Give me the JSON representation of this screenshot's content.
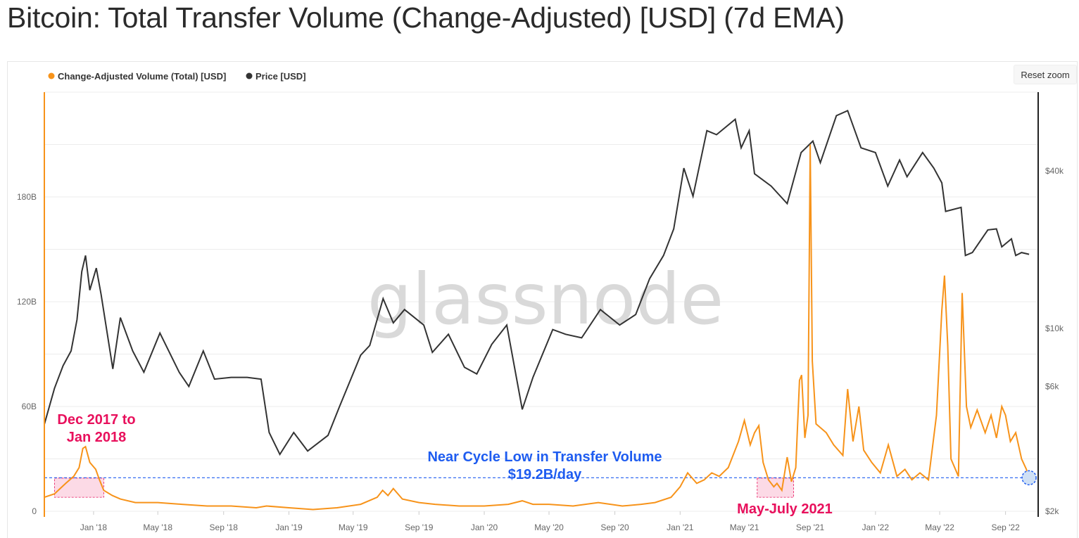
{
  "title": "Bitcoin: Total Transfer Volume (Change-Adjusted) [USD] (7d EMA)",
  "reset_zoom_label": "Reset zoom",
  "watermark": "glassnode",
  "colors": {
    "volume": "#f7931a",
    "price": "#333333",
    "annotation_pink": "#e8105c",
    "annotation_blue": "#1e5cf0",
    "highlight_fill": "#fbd3e2"
  },
  "chart_data": {
    "type": "line",
    "title": "Bitcoin: Total Transfer Volume (Change-Adjusted) [USD] (7d EMA)",
    "legend": {
      "placement": "top-left",
      "entries": [
        "Change-Adjusted Volume (Total) [USD]",
        "Price [USD]"
      ]
    },
    "x_range": [
      "2017-10-01",
      "2022-11-01"
    ],
    "x_ticks": [
      "Jan '18",
      "May '18",
      "Sep '18",
      "Jan '19",
      "May '19",
      "Sep '19",
      "Jan '20",
      "May '20",
      "Sep '20",
      "Jan '21",
      "May '21",
      "Sep '21",
      "Jan '22",
      "May '22",
      "Sep '22"
    ],
    "x_tick_dates": [
      "2018-01-01",
      "2018-05-01",
      "2018-09-01",
      "2019-01-01",
      "2019-05-01",
      "2019-09-01",
      "2020-01-01",
      "2020-05-01",
      "2020-09-01",
      "2021-01-01",
      "2021-05-01",
      "2021-09-01",
      "2022-01-01",
      "2022-05-01",
      "2022-09-01"
    ],
    "y_left": {
      "label": "",
      "range": [
        0,
        240
      ],
      "unit_suffix": "B",
      "ticks": [
        "0",
        "60B",
        "120B",
        "180B"
      ]
    },
    "y_right": {
      "label": "",
      "scale": "log",
      "range": [
        2000,
        80000
      ],
      "ticks": [
        "$2k",
        "$6k",
        "$10k",
        "$40k"
      ]
    },
    "grid": true,
    "series": [
      {
        "name": "Change-Adjusted Volume (Total) [USD]",
        "axis": "left",
        "points": [
          [
            "2017-10-01",
            8
          ],
          [
            "2017-10-20",
            10
          ],
          [
            "2017-11-10",
            16
          ],
          [
            "2017-11-25",
            20
          ],
          [
            "2017-12-05",
            25
          ],
          [
            "2017-12-12",
            36
          ],
          [
            "2017-12-17",
            37
          ],
          [
            "2017-12-25",
            28
          ],
          [
            "2018-01-05",
            24
          ],
          [
            "2018-01-12",
            18
          ],
          [
            "2018-01-20",
            12
          ],
          [
            "2018-02-05",
            9
          ],
          [
            "2018-02-20",
            7
          ],
          [
            "2018-03-20",
            5
          ],
          [
            "2018-05-01",
            5
          ],
          [
            "2018-06-15",
            4
          ],
          [
            "2018-08-01",
            3
          ],
          [
            "2018-09-15",
            3
          ],
          [
            "2018-11-01",
            2
          ],
          [
            "2018-11-20",
            3
          ],
          [
            "2019-01-01",
            2
          ],
          [
            "2019-02-15",
            1
          ],
          [
            "2019-04-01",
            2
          ],
          [
            "2019-05-15",
            4
          ],
          [
            "2019-06-15",
            8
          ],
          [
            "2019-06-25",
            12
          ],
          [
            "2019-07-05",
            9
          ],
          [
            "2019-07-15",
            13
          ],
          [
            "2019-08-01",
            7
          ],
          [
            "2019-09-01",
            5
          ],
          [
            "2019-10-01",
            4
          ],
          [
            "2019-11-15",
            3
          ],
          [
            "2020-01-01",
            3
          ],
          [
            "2020-02-15",
            4
          ],
          [
            "2020-03-12",
            6
          ],
          [
            "2020-04-01",
            4
          ],
          [
            "2020-05-01",
            4
          ],
          [
            "2020-06-15",
            3
          ],
          [
            "2020-08-01",
            5
          ],
          [
            "2020-09-15",
            3
          ],
          [
            "2020-10-20",
            4
          ],
          [
            "2020-11-15",
            5
          ],
          [
            "2020-12-15",
            8
          ],
          [
            "2021-01-01",
            14
          ],
          [
            "2021-01-15",
            22
          ],
          [
            "2021-02-01",
            16
          ],
          [
            "2021-02-15",
            18
          ],
          [
            "2021-03-01",
            22
          ],
          [
            "2021-03-15",
            20
          ],
          [
            "2021-04-01",
            25
          ],
          [
            "2021-04-20",
            40
          ],
          [
            "2021-05-01",
            52
          ],
          [
            "2021-05-12",
            38
          ],
          [
            "2021-05-20",
            45
          ],
          [
            "2021-05-28",
            49
          ],
          [
            "2021-06-05",
            28
          ],
          [
            "2021-06-15",
            18
          ],
          [
            "2021-06-25",
            14
          ],
          [
            "2021-07-01",
            16
          ],
          [
            "2021-07-10",
            12
          ],
          [
            "2021-07-20",
            31
          ],
          [
            "2021-07-28",
            17
          ],
          [
            "2021-08-05",
            25
          ],
          [
            "2021-08-12",
            75
          ],
          [
            "2021-08-16",
            78
          ],
          [
            "2021-08-22",
            42
          ],
          [
            "2021-08-28",
            55
          ],
          [
            "2021-09-01",
            210
          ],
          [
            "2021-09-05",
            86
          ],
          [
            "2021-09-12",
            50
          ],
          [
            "2021-10-01",
            45
          ],
          [
            "2021-10-15",
            38
          ],
          [
            "2021-11-01",
            32
          ],
          [
            "2021-11-10",
            70
          ],
          [
            "2021-11-20",
            40
          ],
          [
            "2021-12-01",
            60
          ],
          [
            "2021-12-10",
            35
          ],
          [
            "2021-12-25",
            28
          ],
          [
            "2022-01-10",
            22
          ],
          [
            "2022-01-25",
            38
          ],
          [
            "2022-02-10",
            20
          ],
          [
            "2022-02-25",
            24
          ],
          [
            "2022-03-10",
            18
          ],
          [
            "2022-03-25",
            22
          ],
          [
            "2022-04-10",
            18
          ],
          [
            "2022-04-25",
            55
          ],
          [
            "2022-05-05",
            115
          ],
          [
            "2022-05-10",
            135
          ],
          [
            "2022-05-16",
            95
          ],
          [
            "2022-05-22",
            30
          ],
          [
            "2022-06-05",
            20
          ],
          [
            "2022-06-12",
            125
          ],
          [
            "2022-06-20",
            60
          ],
          [
            "2022-06-28",
            48
          ],
          [
            "2022-07-10",
            58
          ],
          [
            "2022-07-25",
            45
          ],
          [
            "2022-08-05",
            55
          ],
          [
            "2022-08-15",
            42
          ],
          [
            "2022-08-25",
            60
          ],
          [
            "2022-09-01",
            55
          ],
          [
            "2022-09-10",
            40
          ],
          [
            "2022-09-20",
            45
          ],
          [
            "2022-10-01",
            30
          ],
          [
            "2022-10-10",
            24
          ],
          [
            "2022-10-15",
            18
          ]
        ]
      },
      {
        "name": "Price [USD]",
        "axis": "right",
        "points": [
          [
            "2017-10-01",
            4300
          ],
          [
            "2017-10-20",
            5900
          ],
          [
            "2017-11-05",
            7200
          ],
          [
            "2017-11-20",
            8200
          ],
          [
            "2017-12-01",
            10800
          ],
          [
            "2017-12-10",
            16500
          ],
          [
            "2017-12-17",
            19000
          ],
          [
            "2017-12-25",
            14000
          ],
          [
            "2018-01-06",
            17000
          ],
          [
            "2018-01-15",
            13500
          ],
          [
            "2018-02-06",
            7000
          ],
          [
            "2018-02-20",
            11000
          ],
          [
            "2018-03-15",
            8200
          ],
          [
            "2018-04-05",
            6800
          ],
          [
            "2018-05-05",
            9600
          ],
          [
            "2018-06-10",
            6800
          ],
          [
            "2018-06-28",
            6000
          ],
          [
            "2018-07-25",
            8200
          ],
          [
            "2018-08-15",
            6400
          ],
          [
            "2018-09-15",
            6500
          ],
          [
            "2018-10-15",
            6500
          ],
          [
            "2018-11-10",
            6400
          ],
          [
            "2018-11-25",
            4000
          ],
          [
            "2018-12-15",
            3300
          ],
          [
            "2019-01-10",
            4000
          ],
          [
            "2019-02-05",
            3400
          ],
          [
            "2019-03-15",
            3900
          ],
          [
            "2019-04-05",
            5000
          ],
          [
            "2019-05-15",
            7900
          ],
          [
            "2019-06-01",
            8600
          ],
          [
            "2019-06-26",
            13000
          ],
          [
            "2019-07-15",
            10500
          ],
          [
            "2019-08-05",
            11800
          ],
          [
            "2019-09-10",
            10300
          ],
          [
            "2019-09-26",
            8100
          ],
          [
            "2019-10-26",
            9500
          ],
          [
            "2019-11-25",
            7100
          ],
          [
            "2019-12-18",
            6700
          ],
          [
            "2020-01-15",
            8700
          ],
          [
            "2020-02-12",
            10300
          ],
          [
            "2020-03-12",
            4900
          ],
          [
            "2020-04-01",
            6500
          ],
          [
            "2020-05-08",
            9900
          ],
          [
            "2020-06-01",
            9500
          ],
          [
            "2020-07-01",
            9200
          ],
          [
            "2020-08-05",
            11800
          ],
          [
            "2020-09-10",
            10300
          ],
          [
            "2020-10-10",
            11300
          ],
          [
            "2020-11-05",
            15500
          ],
          [
            "2020-12-01",
            19000
          ],
          [
            "2020-12-20",
            24000
          ],
          [
            "2021-01-08",
            41000
          ],
          [
            "2021-01-25",
            32000
          ],
          [
            "2021-02-20",
            57000
          ],
          [
            "2021-03-10",
            55000
          ],
          [
            "2021-04-14",
            63000
          ],
          [
            "2021-04-25",
            49000
          ],
          [
            "2021-05-10",
            57000
          ],
          [
            "2021-05-20",
            39000
          ],
          [
            "2021-06-20",
            35000
          ],
          [
            "2021-07-20",
            30000
          ],
          [
            "2021-08-15",
            47000
          ],
          [
            "2021-09-06",
            52000
          ],
          [
            "2021-09-20",
            43000
          ],
          [
            "2021-10-20",
            65000
          ],
          [
            "2021-11-10",
            68000
          ],
          [
            "2021-12-05",
            49000
          ],
          [
            "2022-01-01",
            47000
          ],
          [
            "2022-01-24",
            35000
          ],
          [
            "2022-02-15",
            44000
          ],
          [
            "2022-03-01",
            38000
          ],
          [
            "2022-03-30",
            47000
          ],
          [
            "2022-04-20",
            41000
          ],
          [
            "2022-05-05",
            36000
          ],
          [
            "2022-05-12",
            28000
          ],
          [
            "2022-06-10",
            29000
          ],
          [
            "2022-06-18",
            19000
          ],
          [
            "2022-07-01",
            19500
          ],
          [
            "2022-07-30",
            23800
          ],
          [
            "2022-08-15",
            24000
          ],
          [
            "2022-08-25",
            20500
          ],
          [
            "2022-09-12",
            22000
          ],
          [
            "2022-09-20",
            19000
          ],
          [
            "2022-10-01",
            19500
          ],
          [
            "2022-10-15",
            19200
          ]
        ]
      }
    ],
    "annotations": [
      {
        "text_lines": [
          "Dec 2017 to",
          "Jan 2018"
        ],
        "highlight": {
          "x_start": "2017-10-20",
          "x_end": "2018-01-20",
          "y_low": 8,
          "y_high": 19
        }
      },
      {
        "text_lines": [
          "May-July 2021"
        ],
        "highlight": {
          "x_start": "2021-05-25",
          "x_end": "2021-08-01",
          "y_low": 8,
          "y_high": 19
        }
      },
      {
        "text_lines": [
          "Near Cycle Low in Transfer Volume",
          "$19.2B/day"
        ],
        "reference_y": 19.2
      }
    ]
  }
}
